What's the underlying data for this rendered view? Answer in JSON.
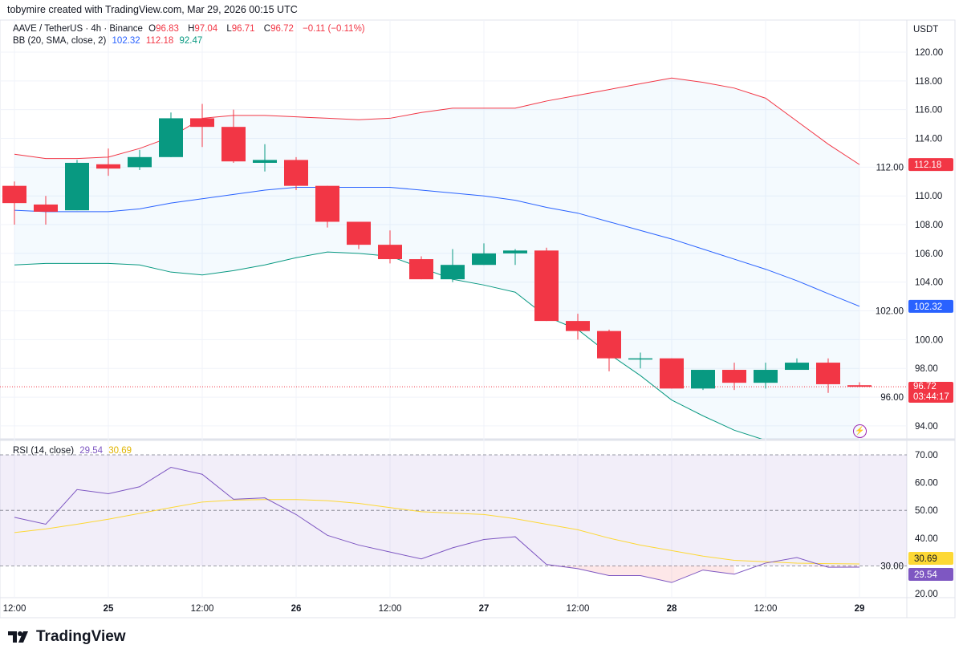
{
  "credit": "tobymire created with TradingView.com, Mar 29, 2026 00:15 UTC",
  "symbol": {
    "name": "AAVE / TetherUS · 4h · Binance",
    "o_label": "O",
    "o": "96.83",
    "h_label": "H",
    "h": "97.04",
    "l_label": "L",
    "l": "96.71",
    "c_label": "C",
    "c": "96.72",
    "change": "−0.11 (−0.11%)"
  },
  "bb_legend": {
    "label": "BB (20, SMA, close, 2)",
    "basis": "102.32",
    "upper": "112.18",
    "lower": "92.47"
  },
  "rsi_legend": {
    "label": "RSI (14, close)",
    "rsi": "29.54",
    "ma": "30.69"
  },
  "currency": "USDT",
  "price_tag": {
    "price": "96.72",
    "countdown": "03:44:17"
  },
  "logo": "TradingView",
  "colors": {
    "up": "#089981",
    "down": "#f23645",
    "bb_basis": "#2962ff",
    "bb_upper": "#f23645",
    "bb_lower": "#089981",
    "rsi": "#7e57c2",
    "rsi_ma": "#fdd835"
  },
  "chart_data": [
    {
      "type": "candlestick",
      "ylim": [
        93,
        121
      ],
      "y_ticks": [
        "94.00",
        "96.00",
        "98.00",
        "100.00",
        "102.00",
        "104.00",
        "106.00",
        "108.00",
        "110.00",
        "112.00",
        "114.00",
        "116.00",
        "118.00",
        "120.00"
      ],
      "x_ticks": [
        "12:00",
        "25",
        "12:00",
        "26",
        "12:00",
        "27",
        "12:00",
        "28",
        "12:00",
        "29"
      ],
      "ohlc": [
        [
          110.7,
          111,
          108,
          109.5
        ],
        [
          109.4,
          110,
          108,
          108.9
        ],
        [
          109,
          112.5,
          109,
          112.3
        ],
        [
          112.2,
          113.3,
          111.4,
          111.9
        ],
        [
          112,
          113.2,
          111.8,
          112.7
        ],
        [
          112.7,
          115.8,
          112.7,
          115.4
        ],
        [
          115.4,
          116.4,
          113.4,
          114.8
        ],
        [
          114.8,
          116,
          112.3,
          112.4
        ],
        [
          112.3,
          113.6,
          111.7,
          112.5
        ],
        [
          112.5,
          112.7,
          110.4,
          110.7
        ],
        [
          110.7,
          110.7,
          107.8,
          108.2
        ],
        [
          108.2,
          108.2,
          106.3,
          106.6
        ],
        [
          106.6,
          107.6,
          105.3,
          105.6
        ],
        [
          105.6,
          105.8,
          104.2,
          104.2
        ],
        [
          104.2,
          106.3,
          104,
          105.2
        ],
        [
          105.2,
          106.7,
          105.2,
          106.0
        ],
        [
          106.0,
          106.3,
          105.2,
          106.2
        ],
        [
          106.2,
          106.4,
          101.3,
          101.3
        ],
        [
          101.3,
          101.8,
          100,
          100.6
        ],
        [
          100.6,
          100.7,
          97.8,
          98.7
        ],
        [
          98.7,
          99.1,
          98.0,
          98.7
        ],
        [
          98.7,
          98.7,
          96.6,
          96.6
        ],
        [
          96.6,
          97.9,
          96.5,
          97.9
        ],
        [
          97.9,
          98.4,
          96.5,
          97.0
        ],
        [
          97.0,
          98.4,
          96.6,
          97.9
        ],
        [
          97.9,
          98.7,
          97.9,
          98.4
        ],
        [
          98.4,
          98.7,
          96.3,
          96.9
        ],
        [
          96.83,
          97.04,
          96.71,
          96.72
        ]
      ],
      "bb_upper": [
        112.9,
        112.6,
        112.6,
        112.7,
        113.3,
        114.1,
        115.4,
        115.6,
        115.6,
        115.5,
        115.4,
        115.3,
        115.4,
        115.8,
        116.1,
        116.1,
        116.1,
        116.6,
        117.0,
        117.4,
        117.8,
        118.2,
        117.9,
        117.5,
        116.8,
        115.2,
        113.6,
        112.18
      ],
      "bb_basis": [
        109.0,
        108.9,
        108.9,
        108.9,
        109.1,
        109.5,
        109.8,
        110.1,
        110.4,
        110.6,
        110.6,
        110.6,
        110.6,
        110.4,
        110.2,
        110.0,
        109.7,
        109.2,
        108.8,
        108.2,
        107.6,
        107.0,
        106.3,
        105.6,
        104.9,
        104.1,
        103.2,
        102.32
      ],
      "bb_lower": [
        105.2,
        105.3,
        105.3,
        105.3,
        105.2,
        104.7,
        104.5,
        104.8,
        105.2,
        105.7,
        106.1,
        106.0,
        105.8,
        105.0,
        104.2,
        103.8,
        103.3,
        101.6,
        100.7,
        99.0,
        97.5,
        95.8,
        94.7,
        93.7,
        93.0,
        92.7,
        92.5,
        92.47
      ]
    },
    {
      "type": "line",
      "ylim": [
        17.5,
        72.5
      ],
      "y_ticks": [
        "20.00",
        "30.00",
        "40.00",
        "50.00",
        "60.00",
        "70.00"
      ],
      "bands": [
        30,
        50,
        70
      ],
      "rsi": [
        47.5,
        45,
        57.5,
        56,
        58.5,
        65.5,
        63,
        54,
        54.5,
        48.5,
        41,
        37.5,
        35,
        32.5,
        36.5,
        39.5,
        40.5,
        30.5,
        29,
        26.5,
        26.5,
        24,
        28.5,
        27,
        31,
        33,
        29.5,
        29.54
      ],
      "rsi_ma": [
        42,
        43.3,
        45,
        46.8,
        48.9,
        51,
        53,
        53.7,
        53.9,
        53.9,
        53.5,
        52.5,
        51,
        49.5,
        49,
        48.5,
        47,
        45,
        43,
        40,
        37.5,
        35.5,
        33.5,
        32,
        31.5,
        31,
        30.8,
        30.69
      ]
    }
  ]
}
